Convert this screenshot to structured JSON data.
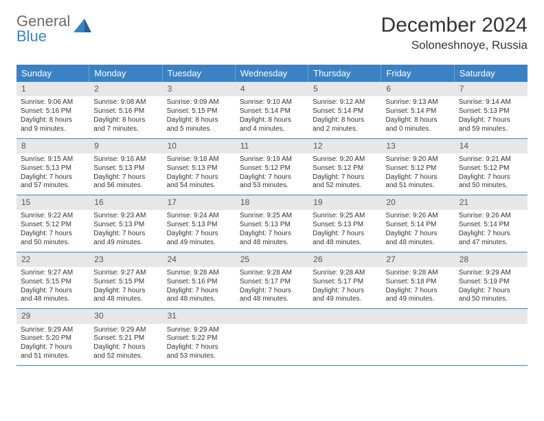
{
  "logo": {
    "line1": "General",
    "line2": "Blue"
  },
  "title": "December 2024",
  "location": "Soloneshnoye, Russia",
  "colors": {
    "header_bg": "#3b82c4",
    "daynum_bg": "#e7e7e7",
    "text": "#333333",
    "logo_gray": "#6a6a6a",
    "logo_blue": "#3b82c4"
  },
  "dow": [
    "Sunday",
    "Monday",
    "Tuesday",
    "Wednesday",
    "Thursday",
    "Friday",
    "Saturday"
  ],
  "weeks": [
    [
      {
        "n": "1",
        "sunrise": "Sunrise: 9:06 AM",
        "sunset": "Sunset: 5:16 PM",
        "daylight": "Daylight: 8 hours and 9 minutes."
      },
      {
        "n": "2",
        "sunrise": "Sunrise: 9:08 AM",
        "sunset": "Sunset: 5:16 PM",
        "daylight": "Daylight: 8 hours and 7 minutes."
      },
      {
        "n": "3",
        "sunrise": "Sunrise: 9:09 AM",
        "sunset": "Sunset: 5:15 PM",
        "daylight": "Daylight: 8 hours and 5 minutes."
      },
      {
        "n": "4",
        "sunrise": "Sunrise: 9:10 AM",
        "sunset": "Sunset: 5:14 PM",
        "daylight": "Daylight: 8 hours and 4 minutes."
      },
      {
        "n": "5",
        "sunrise": "Sunrise: 9:12 AM",
        "sunset": "Sunset: 5:14 PM",
        "daylight": "Daylight: 8 hours and 2 minutes."
      },
      {
        "n": "6",
        "sunrise": "Sunrise: 9:13 AM",
        "sunset": "Sunset: 5:14 PM",
        "daylight": "Daylight: 8 hours and 0 minutes."
      },
      {
        "n": "7",
        "sunrise": "Sunrise: 9:14 AM",
        "sunset": "Sunset: 5:13 PM",
        "daylight": "Daylight: 7 hours and 59 minutes."
      }
    ],
    [
      {
        "n": "8",
        "sunrise": "Sunrise: 9:15 AM",
        "sunset": "Sunset: 5:13 PM",
        "daylight": "Daylight: 7 hours and 57 minutes."
      },
      {
        "n": "9",
        "sunrise": "Sunrise: 9:16 AM",
        "sunset": "Sunset: 5:13 PM",
        "daylight": "Daylight: 7 hours and 56 minutes."
      },
      {
        "n": "10",
        "sunrise": "Sunrise: 9:18 AM",
        "sunset": "Sunset: 5:13 PM",
        "daylight": "Daylight: 7 hours and 54 minutes."
      },
      {
        "n": "11",
        "sunrise": "Sunrise: 9:19 AM",
        "sunset": "Sunset: 5:12 PM",
        "daylight": "Daylight: 7 hours and 53 minutes."
      },
      {
        "n": "12",
        "sunrise": "Sunrise: 9:20 AM",
        "sunset": "Sunset: 5:12 PM",
        "daylight": "Daylight: 7 hours and 52 minutes."
      },
      {
        "n": "13",
        "sunrise": "Sunrise: 9:20 AM",
        "sunset": "Sunset: 5:12 PM",
        "daylight": "Daylight: 7 hours and 51 minutes."
      },
      {
        "n": "14",
        "sunrise": "Sunrise: 9:21 AM",
        "sunset": "Sunset: 5:12 PM",
        "daylight": "Daylight: 7 hours and 50 minutes."
      }
    ],
    [
      {
        "n": "15",
        "sunrise": "Sunrise: 9:22 AM",
        "sunset": "Sunset: 5:12 PM",
        "daylight": "Daylight: 7 hours and 50 minutes."
      },
      {
        "n": "16",
        "sunrise": "Sunrise: 9:23 AM",
        "sunset": "Sunset: 5:13 PM",
        "daylight": "Daylight: 7 hours and 49 minutes."
      },
      {
        "n": "17",
        "sunrise": "Sunrise: 9:24 AM",
        "sunset": "Sunset: 5:13 PM",
        "daylight": "Daylight: 7 hours and 49 minutes."
      },
      {
        "n": "18",
        "sunrise": "Sunrise: 9:25 AM",
        "sunset": "Sunset: 5:13 PM",
        "daylight": "Daylight: 7 hours and 48 minutes."
      },
      {
        "n": "19",
        "sunrise": "Sunrise: 9:25 AM",
        "sunset": "Sunset: 5:13 PM",
        "daylight": "Daylight: 7 hours and 48 minutes."
      },
      {
        "n": "20",
        "sunrise": "Sunrise: 9:26 AM",
        "sunset": "Sunset: 5:14 PM",
        "daylight": "Daylight: 7 hours and 48 minutes."
      },
      {
        "n": "21",
        "sunrise": "Sunrise: 9:26 AM",
        "sunset": "Sunset: 5:14 PM",
        "daylight": "Daylight: 7 hours and 47 minutes."
      }
    ],
    [
      {
        "n": "22",
        "sunrise": "Sunrise: 9:27 AM",
        "sunset": "Sunset: 5:15 PM",
        "daylight": "Daylight: 7 hours and 48 minutes."
      },
      {
        "n": "23",
        "sunrise": "Sunrise: 9:27 AM",
        "sunset": "Sunset: 5:15 PM",
        "daylight": "Daylight: 7 hours and 48 minutes."
      },
      {
        "n": "24",
        "sunrise": "Sunrise: 9:28 AM",
        "sunset": "Sunset: 5:16 PM",
        "daylight": "Daylight: 7 hours and 48 minutes."
      },
      {
        "n": "25",
        "sunrise": "Sunrise: 9:28 AM",
        "sunset": "Sunset: 5:17 PM",
        "daylight": "Daylight: 7 hours and 48 minutes."
      },
      {
        "n": "26",
        "sunrise": "Sunrise: 9:28 AM",
        "sunset": "Sunset: 5:17 PM",
        "daylight": "Daylight: 7 hours and 49 minutes."
      },
      {
        "n": "27",
        "sunrise": "Sunrise: 9:28 AM",
        "sunset": "Sunset: 5:18 PM",
        "daylight": "Daylight: 7 hours and 49 minutes."
      },
      {
        "n": "28",
        "sunrise": "Sunrise: 9:29 AM",
        "sunset": "Sunset: 5:19 PM",
        "daylight": "Daylight: 7 hours and 50 minutes."
      }
    ],
    [
      {
        "n": "29",
        "sunrise": "Sunrise: 9:29 AM",
        "sunset": "Sunset: 5:20 PM",
        "daylight": "Daylight: 7 hours and 51 minutes."
      },
      {
        "n": "30",
        "sunrise": "Sunrise: 9:29 AM",
        "sunset": "Sunset: 5:21 PM",
        "daylight": "Daylight: 7 hours and 52 minutes."
      },
      {
        "n": "31",
        "sunrise": "Sunrise: 9:29 AM",
        "sunset": "Sunset: 5:22 PM",
        "daylight": "Daylight: 7 hours and 53 minutes."
      },
      {
        "n": "",
        "empty": true
      },
      {
        "n": "",
        "empty": true
      },
      {
        "n": "",
        "empty": true
      },
      {
        "n": "",
        "empty": true
      }
    ]
  ]
}
